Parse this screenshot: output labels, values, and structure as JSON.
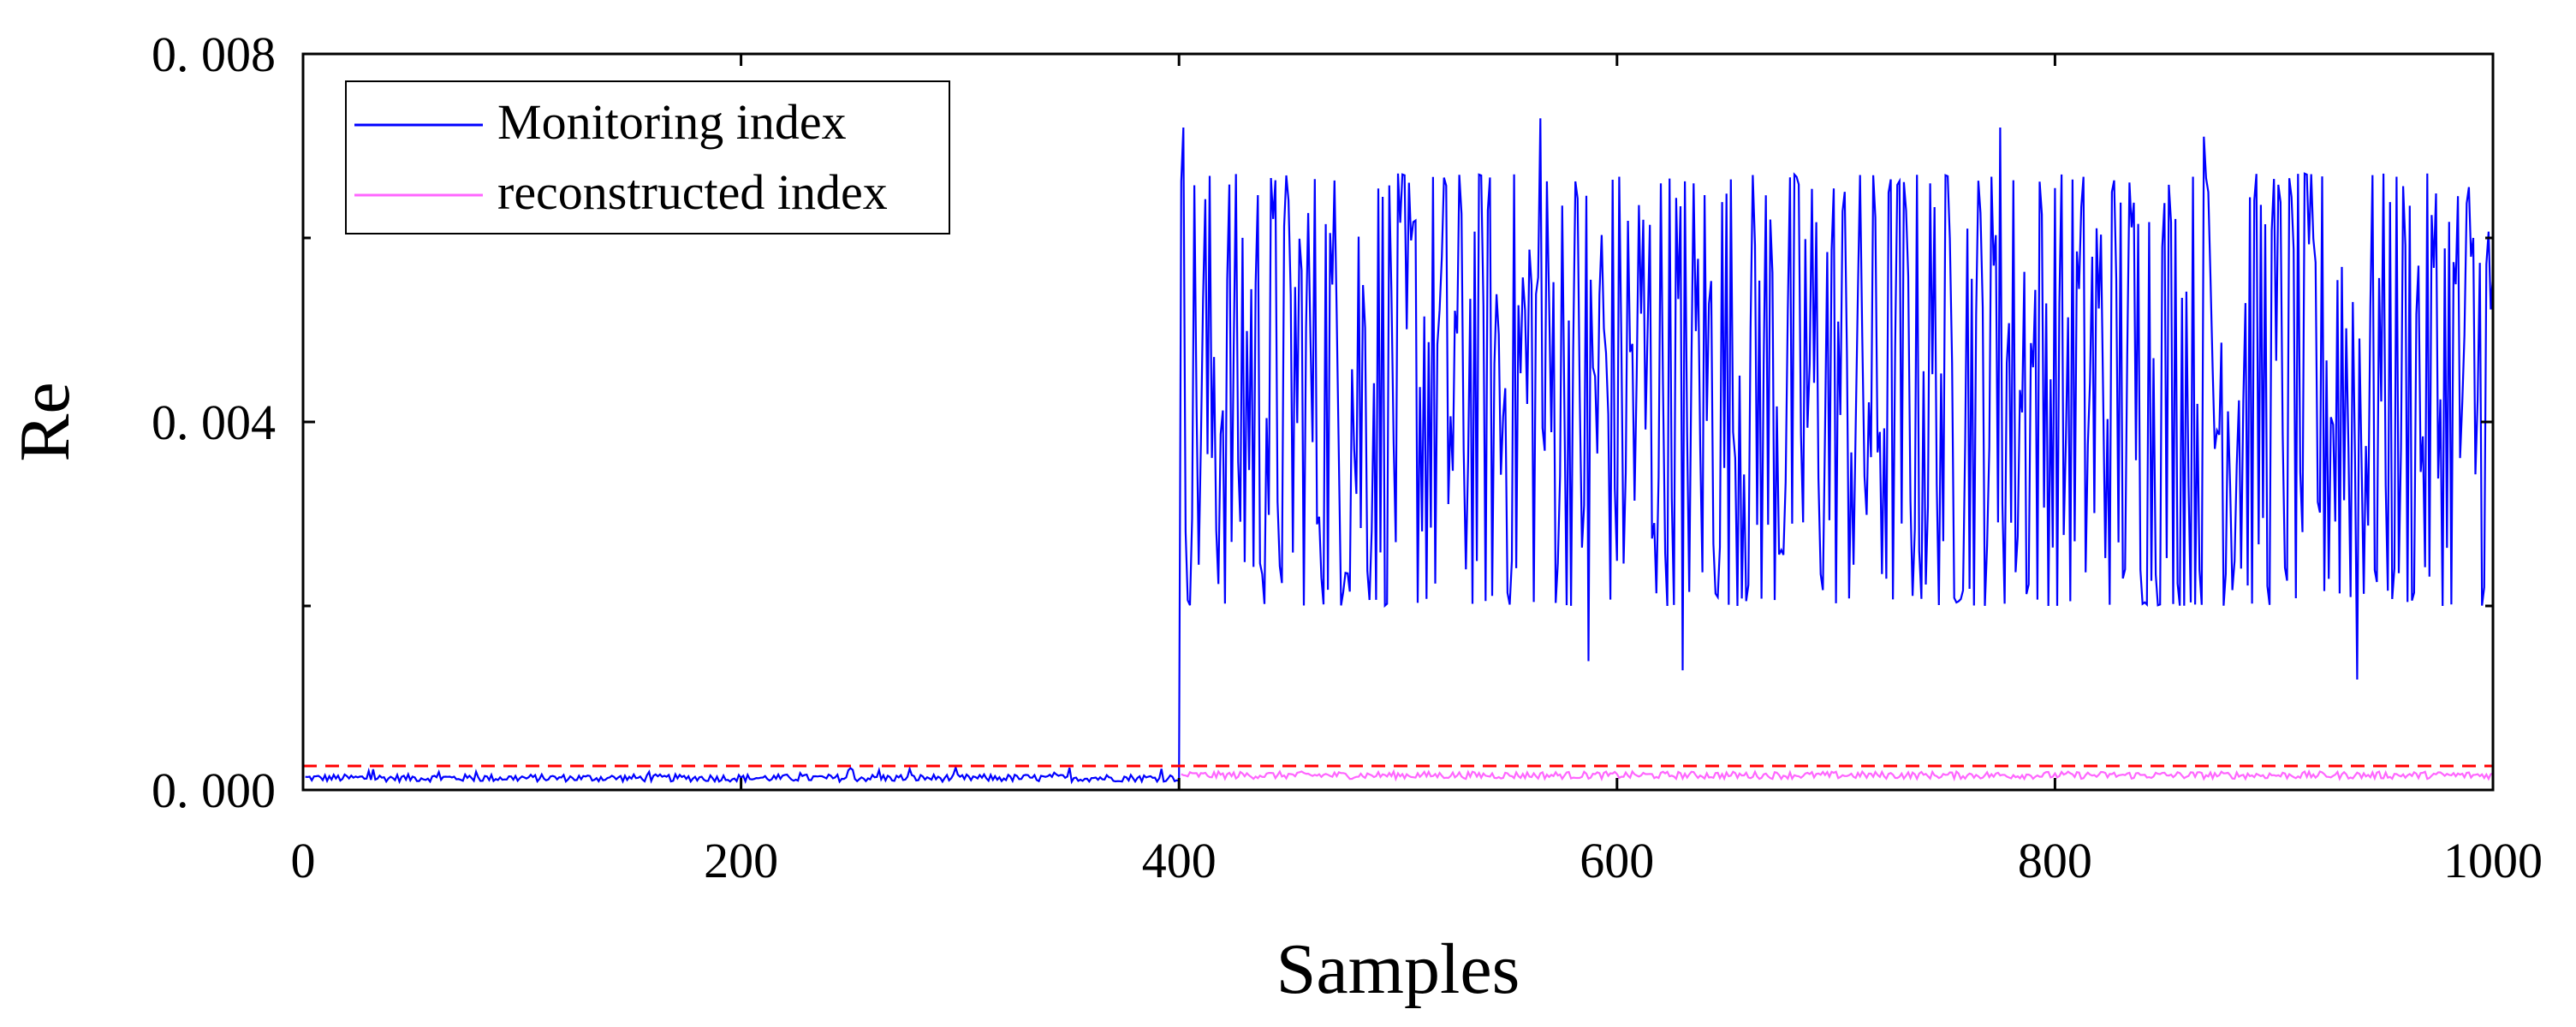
{
  "chart_data": {
    "type": "line",
    "title": "",
    "xlabel": "Samples",
    "ylabel": "Re",
    "xlim": [
      0,
      1000
    ],
    "ylim": [
      0,
      0.008
    ],
    "x_ticks": [
      0,
      200,
      400,
      600,
      800,
      1000
    ],
    "x_tick_labels": [
      "0",
      "200",
      "400",
      "600",
      "800",
      "1000"
    ],
    "y_ticks": [
      0,
      0.004,
      0.008
    ],
    "y_tick_labels": [
      "0. 000",
      "0. 004",
      "0. 008"
    ],
    "y_minor_ticks": [
      0.002,
      0.006
    ],
    "grid": false,
    "legend_position": "top-left",
    "threshold": {
      "value": 0.00026,
      "color": "#ff0000",
      "style": "dashed"
    },
    "series": [
      {
        "name": "Monitoring index",
        "color": "#0000ff",
        "normal_segment": {
          "x_range": [
            1,
            400
          ],
          "mean": 0.00013,
          "noise": 4e-05
        },
        "fault_segment": {
          "x_range": [
            401,
            1000
          ],
          "min": 0.0012,
          "max": 0.0073
        },
        "spikes": [
          {
            "x": 402,
            "y": 0.0072
          },
          {
            "x": 565,
            "y": 0.0073
          },
          {
            "x": 775,
            "y": 0.0072
          },
          {
            "x": 868,
            "y": 0.0071
          },
          {
            "x": 938,
            "y": 0.0012
          },
          {
            "x": 630,
            "y": 0.0013
          },
          {
            "x": 587,
            "y": 0.0014
          }
        ]
      },
      {
        "name": "reconstructed index",
        "color": "#ff66ff",
        "segment": {
          "x_range": [
            401,
            1000
          ],
          "mean": 0.00016,
          "noise": 4e-05
        }
      }
    ]
  }
}
